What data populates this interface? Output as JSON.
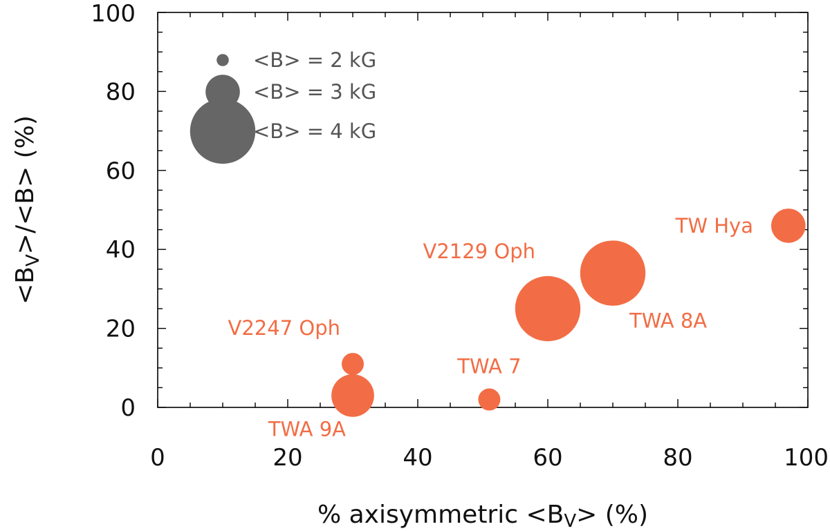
{
  "chart_data": {
    "type": "scatter",
    "xlabel": "% axisymmetric <B",
    "xlabel_sub": "V",
    "xlabel_tail": "> (%)",
    "ylabel_a": "<B",
    "ylabel_sub": "V",
    "ylabel_b": ">/<B> (%)",
    "xlim": [
      0,
      100
    ],
    "ylim": [
      0,
      100
    ],
    "x_ticks": [
      0,
      20,
      40,
      60,
      80,
      100
    ],
    "y_ticks": [
      0,
      20,
      40,
      60,
      80,
      100
    ],
    "x_tick_labels": [
      "0",
      "20",
      "40",
      "60",
      "80",
      "100"
    ],
    "y_tick_labels": [
      "0",
      "20",
      "40",
      "60",
      "80",
      "100"
    ],
    "minor_step": 5,
    "point_color": "#f26d45",
    "legend_color": "#666666",
    "legend": [
      {
        "B_kG": 2,
        "label": "<B> = 2 kG"
      },
      {
        "B_kG": 3,
        "label": "<B> = 3 kG"
      },
      {
        "B_kG": 4,
        "label": "<B> = 4 kG"
      }
    ],
    "points": [
      {
        "name": "TW Hya",
        "x": 97,
        "y": 46,
        "B_kG": 3,
        "label_pos": "left"
      },
      {
        "name": "TWA 8A",
        "x": 70,
        "y": 34,
        "B_kG": 4,
        "label_pos": "below-right"
      },
      {
        "name": "V2129 Oph",
        "x": 60,
        "y": 25,
        "B_kG": 4,
        "label_pos": "above-left"
      },
      {
        "name": "V2247 Oph",
        "x": 30,
        "y": 11,
        "B_kG": 2.5,
        "label_pos": "above-left"
      },
      {
        "name": "TWA 9A",
        "x": 30,
        "y": 3,
        "B_kG": 3.3,
        "label_pos": "below-left"
      },
      {
        "name": "TWA 7",
        "x": 51,
        "y": 2,
        "B_kG": 2.5,
        "label_pos": "above"
      }
    ]
  }
}
